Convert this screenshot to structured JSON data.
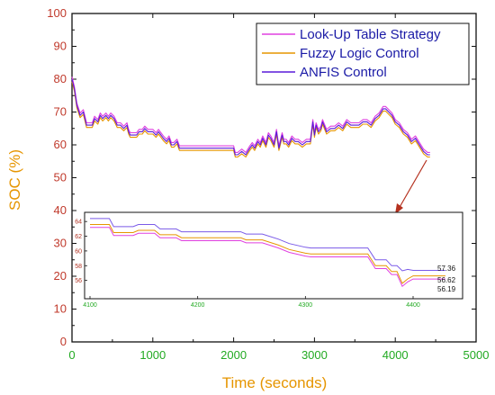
{
  "chart_data": [
    {
      "type": "line",
      "panel": "main",
      "xlabel": "Time (seconds)",
      "ylabel": "SOC (%)",
      "xlim": [
        0,
        5000
      ],
      "ylim": [
        0,
        100
      ],
      "xticks": [
        "0",
        "1000",
        "2000",
        "3000",
        "4000",
        "5000"
      ],
      "yticks": [
        "0",
        "10",
        "20",
        "30",
        "40",
        "50",
        "60",
        "70",
        "80",
        "90",
        "100"
      ],
      "legend_position": "top-right",
      "series": [
        {
          "name": "Look-Up Table Strategy",
          "color": "#e040e0",
          "offset": 0.7
        },
        {
          "name": "Fuzzy Logic Control",
          "color": "#e69500",
          "offset": -0.7
        },
        {
          "name": "ANFIS Control",
          "color": "#5a1ad8",
          "offset": 0
        }
      ],
      "x": [
        0,
        30,
        60,
        100,
        140,
        180,
        220,
        250,
        280,
        320,
        350,
        380,
        420,
        450,
        480,
        520,
        560,
        600,
        640,
        680,
        700,
        720,
        760,
        800,
        830,
        870,
        900,
        940,
        980,
        1000,
        1040,
        1070,
        1100,
        1130,
        1170,
        1200,
        1230,
        1260,
        1300,
        1330,
        1400,
        1500,
        1600,
        1700,
        1800,
        1900,
        2000,
        2020,
        2050,
        2100,
        2150,
        2200,
        2230,
        2260,
        2300,
        2330,
        2360,
        2400,
        2430,
        2460,
        2500,
        2530,
        2560,
        2600,
        2620,
        2650,
        2680,
        2720,
        2760,
        2800,
        2850,
        2900,
        2950,
        2980,
        3000,
        3020,
        3050,
        3080,
        3100,
        3150,
        3200,
        3250,
        3300,
        3350,
        3400,
        3450,
        3500,
        3550,
        3600,
        3650,
        3700,
        3750,
        3800,
        3850,
        3880,
        3920,
        3960,
        4000,
        4050,
        4100,
        4150,
        4200,
        4250,
        4300,
        4350,
        4400,
        4430
      ],
      "values": [
        80,
        77,
        72,
        69,
        70,
        66,
        66,
        66,
        68,
        67,
        69,
        68,
        69,
        68,
        69,
        68,
        66,
        66,
        65,
        66,
        64,
        63,
        63,
        63,
        64,
        64,
        65,
        64,
        64,
        64,
        63,
        64,
        63,
        62,
        61,
        62,
        60,
        60,
        61,
        59,
        59,
        59,
        59,
        59,
        59,
        59,
        59,
        57,
        57,
        58,
        57,
        59,
        60,
        59,
        61,
        60,
        62,
        60,
        63,
        62,
        60,
        64,
        59,
        63,
        61,
        61,
        60,
        62,
        61,
        61,
        60,
        61,
        61,
        67,
        63,
        66,
        64,
        65,
        67,
        64,
        65,
        65,
        66,
        65,
        67,
        66,
        66,
        66,
        67,
        67,
        66,
        68,
        69,
        71,
        71,
        70,
        69,
        67,
        66,
        64,
        63,
        61,
        62,
        60,
        58,
        57,
        57
      ]
    },
    {
      "type": "line",
      "panel": "inset",
      "xlim": [
        4100,
        4430
      ],
      "ylim": [
        54,
        65
      ],
      "xticks": [
        "4100",
        "4200",
        "4300",
        "4400"
      ],
      "yticks": [
        "56",
        "58",
        "60",
        "62",
        "64"
      ],
      "series": [
        {
          "name": "Look-Up Table Strategy",
          "color": "#7a5ae8",
          "values": [
            64.4,
            64.4,
            64.4,
            63.3,
            63.3,
            63.6,
            63.6,
            63.0,
            63.0,
            62.6,
            62.6,
            62.6,
            62.6,
            62.3,
            62.3,
            61.6,
            61.0,
            60.5,
            60.4,
            60.4,
            60.4,
            60.4,
            60.4,
            60.4,
            58.8,
            58.8,
            58.0,
            58.0,
            57.3,
            57.5,
            57.36,
            57.36
          ]
        },
        {
          "name": "Fuzzy Logic Control",
          "color": "#e69500",
          "values": [
            63.6,
            63.6,
            63.6,
            62.5,
            62.5,
            62.8,
            62.8,
            62.2,
            62.2,
            61.8,
            61.8,
            61.8,
            61.8,
            61.5,
            61.5,
            60.8,
            60.2,
            59.7,
            59.6,
            59.6,
            59.6,
            59.6,
            59.6,
            59.6,
            58.0,
            58.0,
            57.2,
            57.2,
            55.6,
            56.2,
            56.62,
            56.62
          ]
        },
        {
          "name": "ANFIS Control",
          "color": "#e040e0",
          "values": [
            63.2,
            63.2,
            63.2,
            62.1,
            62.1,
            62.4,
            62.4,
            61.8,
            61.8,
            61.4,
            61.4,
            61.4,
            61.4,
            61.1,
            61.1,
            60.4,
            59.8,
            59.3,
            59.2,
            59.2,
            59.2,
            59.2,
            59.2,
            59.2,
            57.6,
            57.6,
            56.8,
            56.8,
            55.2,
            55.8,
            56.19,
            56.19
          ]
        }
      ],
      "x": [
        4100,
        4110,
        4118,
        4122,
        4140,
        4145,
        4160,
        4165,
        4180,
        4185,
        4200,
        4220,
        4240,
        4245,
        4260,
        4275,
        4285,
        4300,
        4305,
        4320,
        4340,
        4350,
        4355,
        4358,
        4365,
        4375,
        4380,
        4385,
        4390,
        4395,
        4400,
        4430
      ],
      "end_labels": [
        "57.36",
        "56.62",
        "56.19"
      ]
    }
  ]
}
